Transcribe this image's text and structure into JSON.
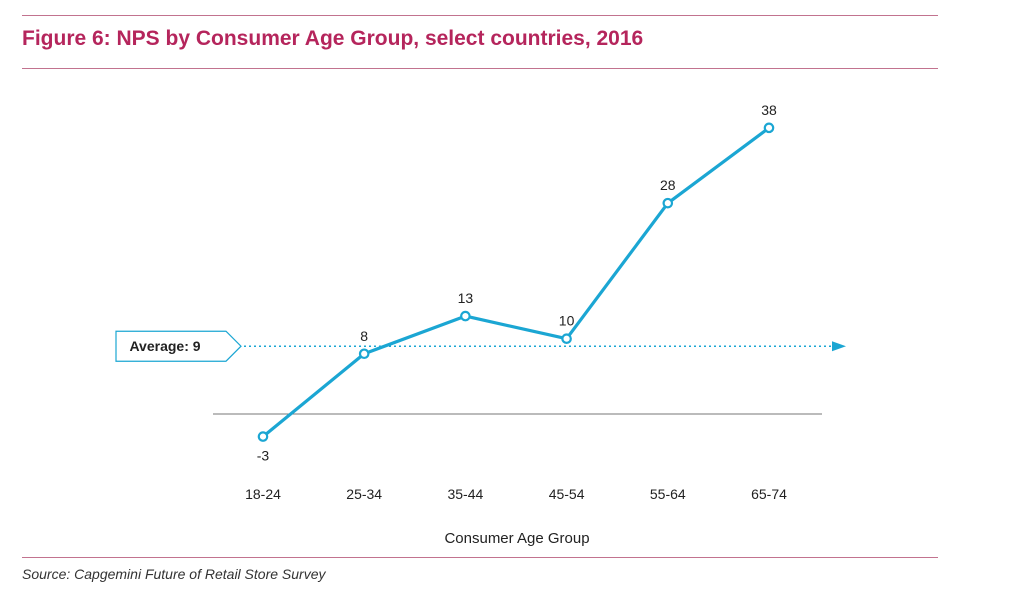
{
  "title": "Figure 6: NPS by Consumer Age Group, select countries, 2016",
  "source": "Source: Capgemini Future of Retail Store Survey",
  "colors": {
    "accent": "#b5255c",
    "line": "#1ba6d3",
    "rule": "#c2738f"
  },
  "chart_data": {
    "type": "line",
    "categories": [
      "18-24",
      "25-34",
      "35-44",
      "45-54",
      "55-64",
      "65-74"
    ],
    "series": [
      {
        "values": [
          -3,
          8,
          13,
          10,
          28,
          38
        ]
      }
    ],
    "data_labels": [
      "-3",
      "8",
      "13",
      "10",
      "28",
      "38"
    ],
    "xlabel": "Consumer Age Group",
    "ylabel": "",
    "reference_line": {
      "value": 9,
      "label": "Average: 9"
    },
    "zero_line": true,
    "grid": false,
    "legend": "none"
  }
}
